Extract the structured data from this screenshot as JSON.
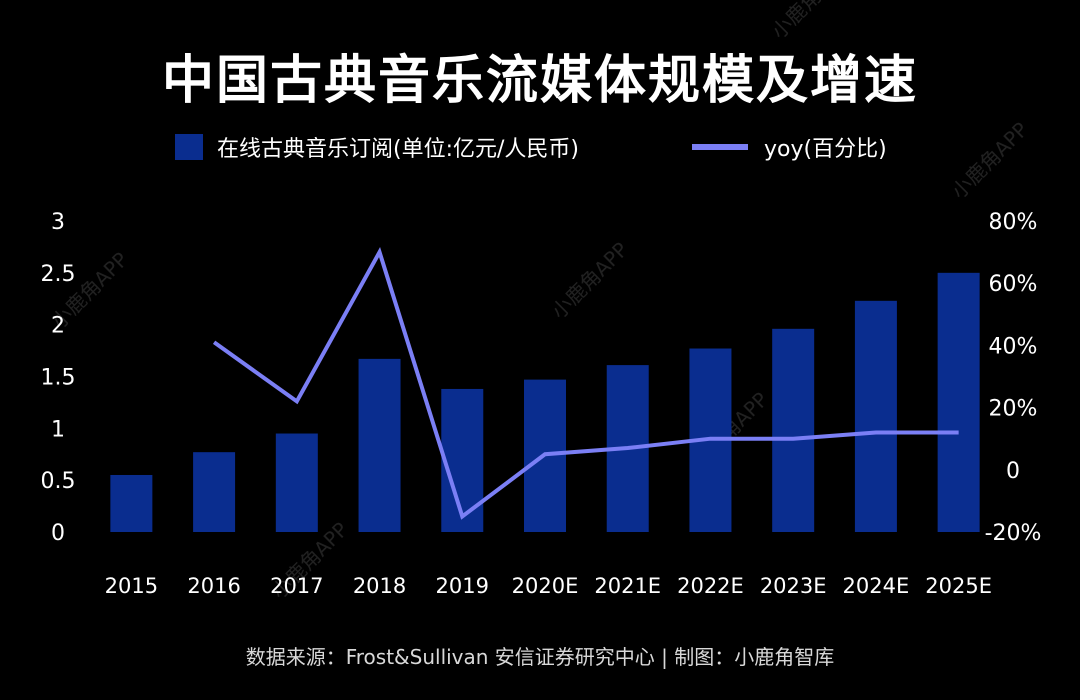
{
  "colors": {
    "background": "#000000",
    "bar": "#0a2d8f",
    "line": "#7b7ff5",
    "text": "#ffffff",
    "muted_text": "#d8d8d8",
    "watermark": "#ffffff"
  },
  "watermark_text": "小鹿角APP",
  "source": "数据来源：Frost&Sullivan 安信证券研究中心 | 制图：小鹿角智库",
  "chart_data": {
    "type": "bar",
    "title": "中国古典音乐流媒体规模及增速",
    "categories": [
      "2015",
      "2016",
      "2017",
      "2018",
      "2019",
      "2020E",
      "2021E",
      "2022E",
      "2023E",
      "2024E",
      "2025E"
    ],
    "series": [
      {
        "name": "在线古典音乐订阅(单位:亿元/人民币)",
        "type": "bar",
        "axis": "left",
        "values": [
          0.55,
          0.77,
          0.95,
          1.67,
          1.38,
          1.47,
          1.61,
          1.77,
          1.96,
          2.23,
          2.5
        ]
      },
      {
        "name": "yoy(百分比)",
        "type": "line",
        "axis": "right",
        "values": [
          null,
          41,
          22,
          70,
          -15,
          5,
          7,
          10,
          10,
          12,
          12
        ]
      }
    ],
    "left_axis": {
      "min": 0,
      "max": 3,
      "ticks": [
        0,
        0.5,
        1,
        1.5,
        2,
        2.5,
        3
      ],
      "tick_labels": [
        "0",
        "0.5",
        "1",
        "1.5",
        "2",
        "2.5",
        "3"
      ]
    },
    "right_axis": {
      "min": -20,
      "max": 80,
      "ticks": [
        -20,
        0,
        20,
        40,
        60,
        80
      ],
      "tick_labels": [
        "-20%",
        "0",
        "20%",
        "40%",
        "60%",
        "80%"
      ]
    },
    "grid": false,
    "legend_position": "top"
  }
}
